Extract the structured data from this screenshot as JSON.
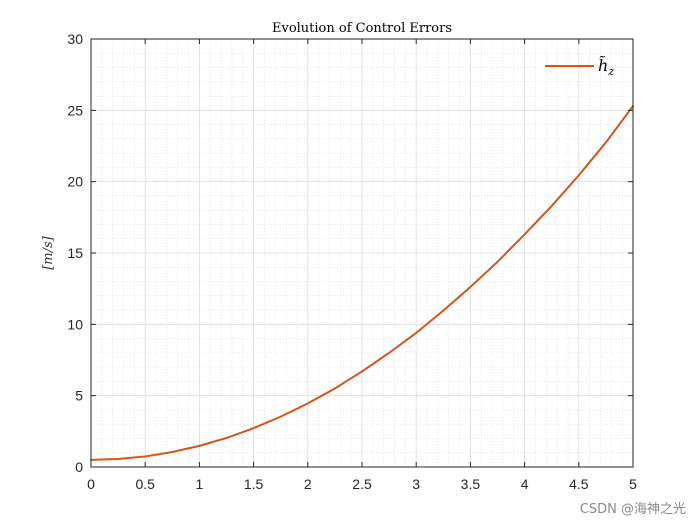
{
  "chart_data": {
    "type": "line",
    "title": "Evolution of Control Errors",
    "xlabel": "",
    "ylabel": "[m/s]",
    "xlim": [
      0,
      5
    ],
    "ylim": [
      0,
      30
    ],
    "xticks": [
      0,
      0.5,
      1,
      1.5,
      2,
      2.5,
      3,
      3.5,
      4,
      4.5,
      5
    ],
    "xtick_labels": [
      "0",
      "0.5",
      "1",
      "1.5",
      "2",
      "2.5",
      "3",
      "3.5",
      "4",
      "4.5",
      "5"
    ],
    "yticks": [
      0,
      5,
      10,
      15,
      20,
      25,
      30
    ],
    "ytick_labels": [
      "0",
      "5",
      "10",
      "15",
      "20",
      "25",
      "30"
    ],
    "grid": true,
    "minor_grid": true,
    "legend_position": "top-right",
    "series": [
      {
        "name": "h̃_z",
        "legend_base": "h̃",
        "legend_sub": "z",
        "color": "#d95319",
        "x": [
          0,
          0.25,
          0.5,
          0.75,
          1,
          1.25,
          1.5,
          1.75,
          2,
          2.25,
          2.5,
          2.75,
          3,
          3.25,
          3.5,
          3.75,
          4,
          4.25,
          4.5,
          4.75,
          5
        ],
        "y": [
          0.5,
          0.56,
          0.74,
          1.05,
          1.48,
          2.04,
          2.72,
          3.53,
          4.46,
          5.5,
          6.7,
          8.0,
          9.4,
          10.96,
          12.62,
          14.38,
          16.3,
          18.3,
          20.45,
          22.75,
          25.3
        ]
      }
    ]
  },
  "watermark": "CSDN @海神之光"
}
